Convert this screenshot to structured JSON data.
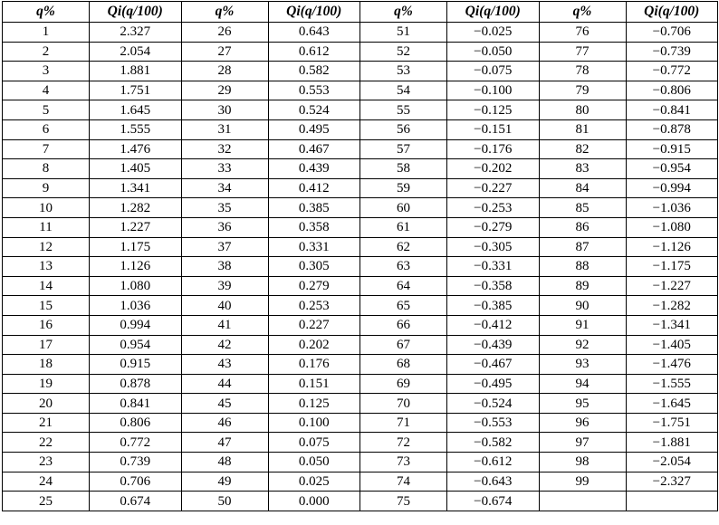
{
  "table": {
    "headers": [
      "q%",
      "Qi(q/100)",
      "q%",
      "Qi(q/100)",
      "q%",
      "Qi(q/100)",
      "q%",
      "Qi(q/100)"
    ],
    "rows": [
      [
        "1",
        "2.327",
        "26",
        "0.643",
        "51",
        "−0.025",
        "76",
        "−0.706"
      ],
      [
        "2",
        "2.054",
        "27",
        "0.612",
        "52",
        "−0.050",
        "77",
        "−0.739"
      ],
      [
        "3",
        "1.881",
        "28",
        "0.582",
        "53",
        "−0.075",
        "78",
        "−0.772"
      ],
      [
        "4",
        "1.751",
        "29",
        "0.553",
        "54",
        "−0.100",
        "79",
        "−0.806"
      ],
      [
        "5",
        "1.645",
        "30",
        "0.524",
        "55",
        "−0.125",
        "80",
        "−0.841"
      ],
      [
        "6",
        "1.555",
        "31",
        "0.495",
        "56",
        "−0.151",
        "81",
        "−0.878"
      ],
      [
        "7",
        "1.476",
        "32",
        "0.467",
        "57",
        "−0.176",
        "82",
        "−0.915"
      ],
      [
        "8",
        "1.405",
        "33",
        "0.439",
        "58",
        "−0.202",
        "83",
        "−0.954"
      ],
      [
        "9",
        "1.341",
        "34",
        "0.412",
        "59",
        "−0.227",
        "84",
        "−0.994"
      ],
      [
        "10",
        "1.282",
        "35",
        "0.385",
        "60",
        "−0.253",
        "85",
        "−1.036"
      ],
      [
        "11",
        "1.227",
        "36",
        "0.358",
        "61",
        "−0.279",
        "86",
        "−1.080"
      ],
      [
        "12",
        "1.175",
        "37",
        "0.331",
        "62",
        "−0.305",
        "87",
        "−1.126"
      ],
      [
        "13",
        "1.126",
        "38",
        "0.305",
        "63",
        "−0.331",
        "88",
        "−1.175"
      ],
      [
        "14",
        "1.080",
        "39",
        "0.279",
        "64",
        "−0.358",
        "89",
        "−1.227"
      ],
      [
        "15",
        "1.036",
        "40",
        "0.253",
        "65",
        "−0.385",
        "90",
        "−1.282"
      ],
      [
        "16",
        "0.994",
        "41",
        "0.227",
        "66",
        "−0.412",
        "91",
        "−1.341"
      ],
      [
        "17",
        "0.954",
        "42",
        "0.202",
        "67",
        "−0.439",
        "92",
        "−1.405"
      ],
      [
        "18",
        "0.915",
        "43",
        "0.176",
        "68",
        "−0.467",
        "93",
        "−1.476"
      ],
      [
        "19",
        "0.878",
        "44",
        "0.151",
        "69",
        "−0.495",
        "94",
        "−1.555"
      ],
      [
        "20",
        "0.841",
        "45",
        "0.125",
        "70",
        "−0.524",
        "95",
        "−1.645"
      ],
      [
        "21",
        "0.806",
        "46",
        "0.100",
        "71",
        "−0.553",
        "96",
        "−1.751"
      ],
      [
        "22",
        "0.772",
        "47",
        "0.075",
        "72",
        "−0.582",
        "97",
        "−1.881"
      ],
      [
        "23",
        "0.739",
        "48",
        "0.050",
        "73",
        "−0.612",
        "98",
        "−2.054"
      ],
      [
        "24",
        "0.706",
        "49",
        "0.025",
        "74",
        "−0.643",
        "99",
        "−2.327"
      ],
      [
        "25",
        "0.674",
        "50",
        "0.000",
        "75",
        "−0.674",
        "",
        ""
      ]
    ]
  }
}
